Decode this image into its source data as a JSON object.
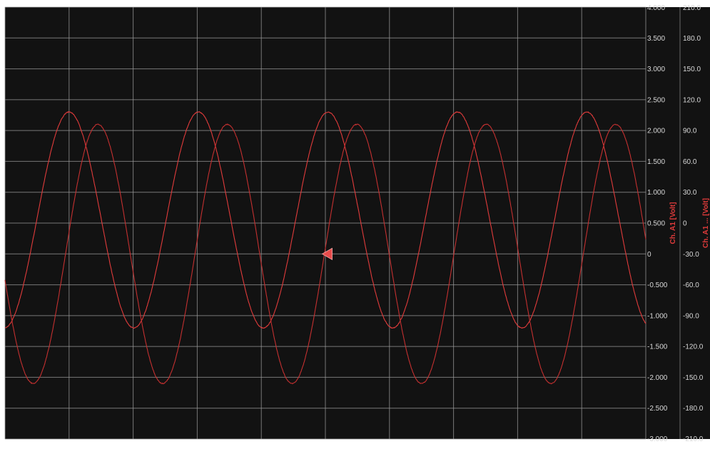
{
  "chart_data": {
    "type": "line",
    "title": "",
    "xlabel": "",
    "xlim": [
      0,
      10
    ],
    "ylim": [
      -3,
      4
    ],
    "y2lim": [
      -210,
      210
    ],
    "grid": true,
    "x_divisions": 10,
    "y_tick_labels": [
      "4.000",
      "3.500",
      "3.000",
      "2.500",
      "2.000",
      "1.500",
      "1.000",
      "0.500",
      "0",
      "-0.500",
      "-1.000",
      "-1.500",
      "-2.000",
      "-2.500",
      "-3.000"
    ],
    "y2_tick_labels": [
      "210.0",
      "180.0",
      "150.0",
      "120.0",
      "90.0",
      "60.0",
      "30.0",
      "0",
      "-30.0",
      "-60.0",
      "-90.0",
      "-120.0",
      "-150.0",
      "-180.0",
      "-210.0"
    ],
    "ylabel": "Ch. A1 [Volt]",
    "y2label": "Ch. A1 ... [Volt]",
    "trigger_marker": {
      "x": 5.05,
      "y": 0
    },
    "series": [
      {
        "axis": "left",
        "color": "#e03b3b",
        "amplitude_scale": 2.7,
        "offset_scale": 0.5,
        "period_div": 1.98,
        "peak_x": 1.0,
        "values_note_omitted": true
      },
      {
        "axis": "left",
        "color": "#c43030",
        "amplitude_scale": 2.6,
        "offset_scale": 0.0,
        "period_div": 1.98,
        "peak_x": 1.45
      }
    ],
    "colors": {
      "background": "#121212",
      "grid": "#9a9a9a",
      "trace": "#e03b3b",
      "label": "#e03b3b"
    }
  }
}
